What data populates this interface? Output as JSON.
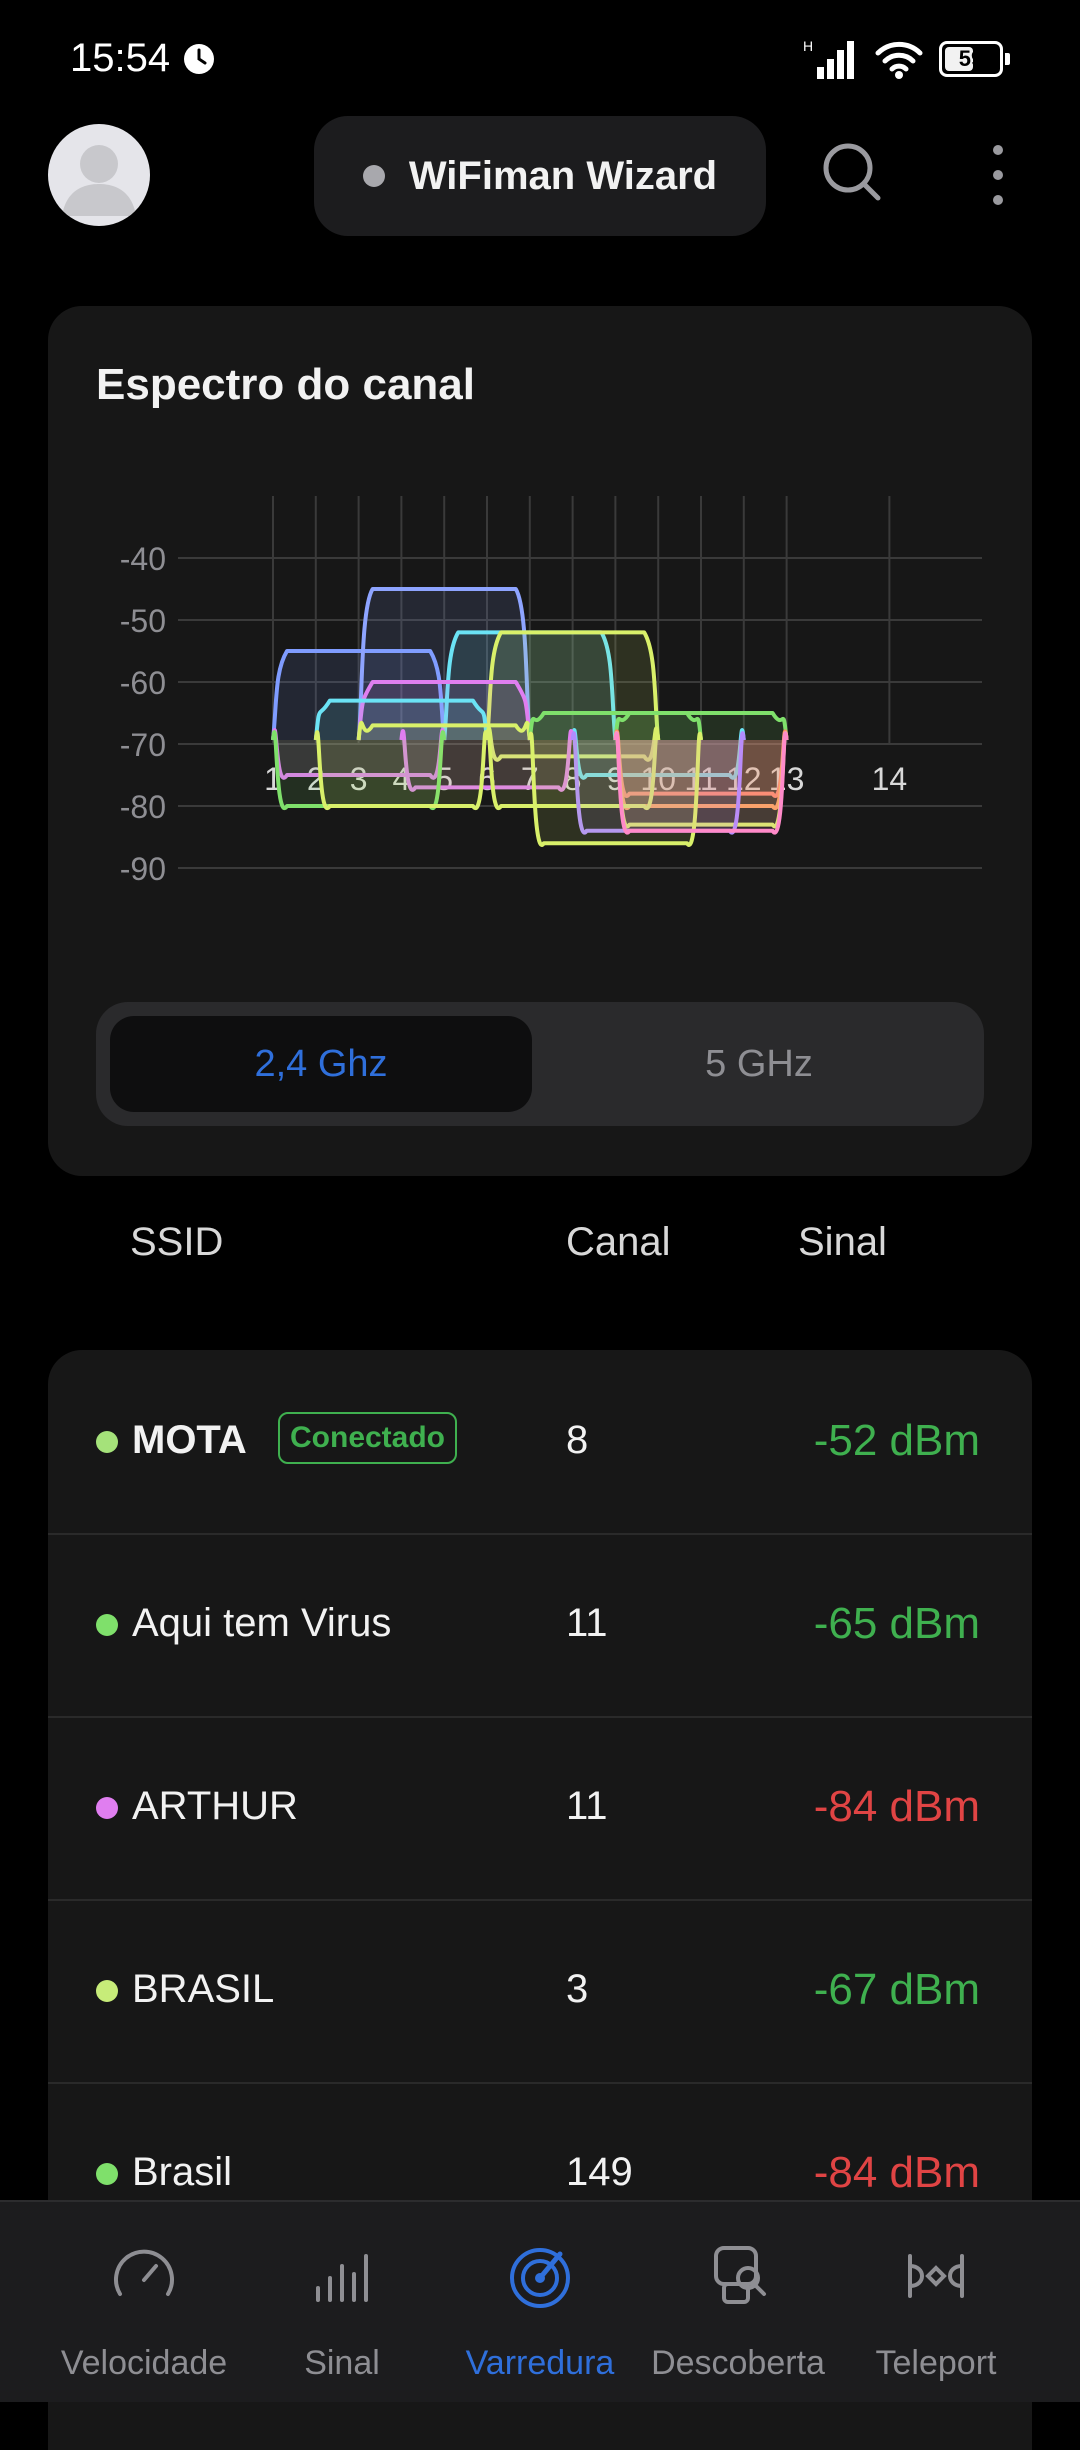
{
  "status_bar": {
    "time": "15:54",
    "network": "H",
    "battery": "59",
    "battery_level": 59
  },
  "header": {
    "device_name": "WiFiman Wizard"
  },
  "spectrum": {
    "title": "Espectro do canal",
    "chart_data": {
      "type": "area",
      "title": "Espectro do canal",
      "xlabel": "",
      "ylabel": "",
      "x_ticks": [
        "1",
        "2",
        "3",
        "4",
        "5",
        "6",
        "7",
        "8",
        "9",
        "10",
        "11",
        "12",
        "13",
        "14"
      ],
      "y_ticks": [
        "-40",
        "-50",
        "-60",
        "-70",
        "-80",
        "-90"
      ],
      "ylim": [
        -95,
        -35
      ],
      "grid": true,
      "series": [
        {
          "center": 3,
          "level": -55,
          "color": "#7f9cff"
        },
        {
          "center": 5,
          "level": -45,
          "color": "#8ea4ff"
        },
        {
          "center": 7,
          "level": -52,
          "color": "#6be3f5"
        },
        {
          "center": 8,
          "level": -52,
          "color": "#d9f06a"
        },
        {
          "center": 5,
          "level": -60,
          "color": "#e07ef0"
        },
        {
          "center": 4,
          "level": -63,
          "color": "#6be3f5"
        },
        {
          "center": 5,
          "level": -67,
          "color": "#d9f06a"
        },
        {
          "center": 9,
          "level": -65,
          "color": "#7fe06b"
        },
        {
          "center": 11,
          "level": -65,
          "color": "#7fe06b"
        },
        {
          "center": 8,
          "level": -72,
          "color": "#d9f06a"
        },
        {
          "center": 10,
          "level": -75,
          "color": "#6be3f5"
        },
        {
          "center": 3,
          "level": -75,
          "color": "#e07ef0"
        },
        {
          "center": 6,
          "level": -77,
          "color": "#e07ef0"
        },
        {
          "center": 11,
          "level": -78,
          "color": "#ff7f6e"
        },
        {
          "center": 11,
          "level": -80,
          "color": "#ff9b5e"
        },
        {
          "center": 11,
          "level": -83,
          "color": "#d9f06a"
        },
        {
          "center": 3,
          "level": -80,
          "color": "#7fe06b"
        },
        {
          "center": 4,
          "level": -80,
          "color": "#d9f06a"
        },
        {
          "center": 8,
          "level": -80,
          "color": "#d9f06a"
        },
        {
          "center": 10,
          "level": -84,
          "color": "#b18cff"
        },
        {
          "center": 9,
          "level": -86,
          "color": "#d9f06a"
        },
        {
          "center": 11,
          "level": -84,
          "color": "#ff8ac9"
        }
      ]
    },
    "bands": {
      "band_24": "2,4 Ghz",
      "band_5": "5 GHz"
    }
  },
  "list_header": {
    "ssid": "SSID",
    "channel": "Canal",
    "signal": "Sinal"
  },
  "networks": [
    {
      "ssid": "MOTA",
      "badge": "Conectado",
      "channel": "8",
      "signal": "-52 dBm",
      "dot_color": "#a5e27a",
      "signal_color": "#3fb04f"
    },
    {
      "ssid": "Aqui tem Virus",
      "channel": "11",
      "signal": "-65 dBm",
      "dot_color": "#7fe06b",
      "signal_color": "#3fb04f"
    },
    {
      "ssid": "ARTHUR",
      "channel": "11",
      "signal": "-84 dBm",
      "dot_color": "#e07ef0",
      "signal_color": "#e04444"
    },
    {
      "ssid": "BRASIL",
      "channel": "3",
      "signal": "-67 dBm",
      "dot_color": "#c7ec79",
      "signal_color": "#3fb04f"
    },
    {
      "ssid": "Brasil",
      "channel": "149",
      "signal": "-84 dBm",
      "dot_color": "#7fe06b",
      "signal_color": "#e04444"
    }
  ],
  "nav": [
    {
      "label": "Velocidade",
      "icon": "speedometer-icon"
    },
    {
      "label": "Sinal",
      "icon": "signal-bars-icon"
    },
    {
      "label": "Varredura",
      "icon": "radar-icon"
    },
    {
      "label": "Descoberta",
      "icon": "discovery-icon"
    },
    {
      "label": "Teleport",
      "icon": "teleport-icon"
    }
  ],
  "colors": {
    "accent": "#2f6fdb",
    "good_signal": "#3fb04f",
    "weak_signal": "#e04444"
  }
}
